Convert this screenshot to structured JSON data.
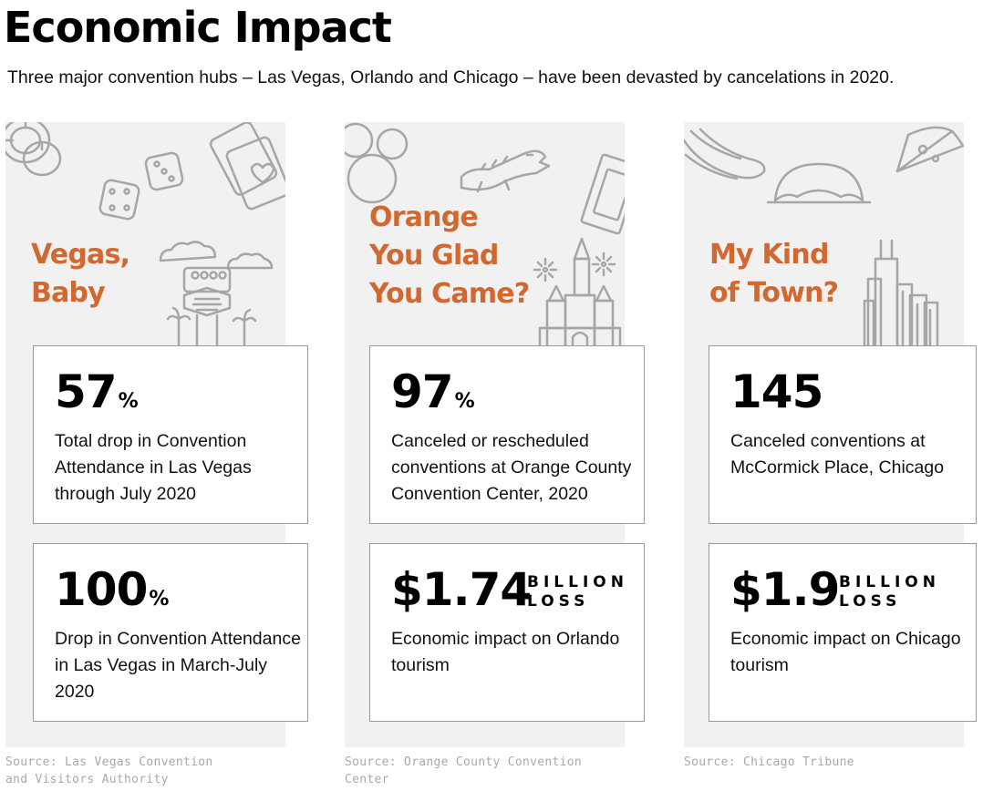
{
  "title": "Economic Impact",
  "subtitle": "Three major convention hubs – Las Vegas, Orlando and Chicago – have been devasted by cancelations in 2020.",
  "colors": {
    "accent": "#d0682f",
    "panel": "#f1f1f1",
    "icon_stroke": "#a6a6a6",
    "border": "#9a9a9a",
    "source": "#a9a9a9"
  },
  "columns": [
    {
      "heading_lines": [
        "Vegas,",
        "Baby"
      ],
      "icons": [
        "poker-chips-icon",
        "dice-icon",
        "playing-cards-icon",
        "vegas-sign-icon",
        "palm-tree-icon"
      ],
      "cards": [
        {
          "number": "57",
          "suffix": "%",
          "unit_lines": [],
          "description": "Total drop in Convention Attendance in Las Vegas through July 2020"
        },
        {
          "number": "100",
          "suffix": "%",
          "unit_lines": [],
          "description": "Drop in Convention Attendance in Las Vegas in March-July 2020"
        }
      ],
      "source": "Source: Las Vegas Convention and Visitors Authority"
    },
    {
      "heading_lines": [
        "Orange",
        "You Glad",
        "You Came?"
      ],
      "icons": [
        "mouse-ears-icon",
        "alligator-icon",
        "money-bill-icon",
        "castle-icon",
        "fireworks-icon"
      ],
      "cards": [
        {
          "number": "97",
          "suffix": "%",
          "unit_lines": [],
          "description": "Canceled or rescheduled conventions at Orange County Convention Center, 2020"
        },
        {
          "number": "$1.74",
          "suffix": "",
          "unit_lines": [
            "BILLION",
            "LOSS"
          ],
          "description": "Economic impact on Orlando tourism"
        }
      ],
      "source": "Source: Orange County Convention Center"
    },
    {
      "heading_lines": [
        "My Kind",
        "of Town?"
      ],
      "icons": [
        "hot-dog-icon",
        "bean-sculpture-icon",
        "pizza-slice-icon",
        "skyline-icon"
      ],
      "cards": [
        {
          "number": "145",
          "suffix": "",
          "unit_lines": [],
          "description": "Canceled conventions at McCormick Place, Chicago"
        },
        {
          "number": "$1.9",
          "suffix": "",
          "unit_lines": [
            "BILLION",
            "LOSS"
          ],
          "description": "Economic impact on Chicago tourism"
        }
      ],
      "source": "Source: Chicago Tribune"
    }
  ]
}
